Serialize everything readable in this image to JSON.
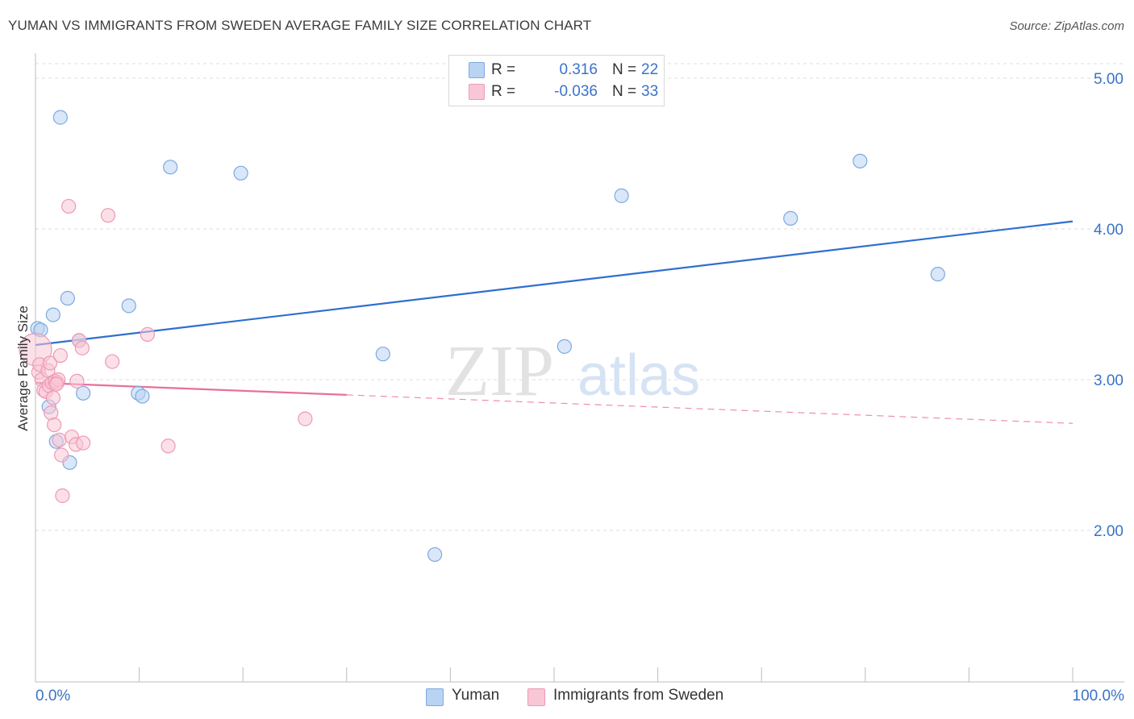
{
  "header": {
    "title": "YUMAN VS IMMIGRANTS FROM SWEDEN AVERAGE FAMILY SIZE CORRELATION CHART",
    "source": "Source: ZipAtlas.com"
  },
  "watermark": {
    "zip": "ZIP",
    "atlas": "atlas"
  },
  "legend": {
    "r_label": "R =",
    "n_label": "N =",
    "rows": [
      {
        "r_value": "0.316",
        "n_value": "22"
      },
      {
        "r_value": "-0.036",
        "n_value": "33"
      }
    ]
  },
  "colors": {
    "yuman_fill": "#b9d3f3",
    "yuman_stroke": "#7ea9df",
    "yuman_line": "#2e6fcf",
    "sweden_fill": "#f9c6d6",
    "sweden_stroke": "#ec9ab5",
    "sweden_line": "#e8709a",
    "tick_text": "#3a73c8",
    "grid": "#dcdcdc"
  },
  "chart_data": {
    "type": "scatter",
    "title": "YUMAN VS IMMIGRANTS FROM SWEDEN AVERAGE FAMILY SIZE CORRELATION CHART",
    "xlabel": "",
    "ylabel": "Average Family Size",
    "xlim": [
      0,
      100
    ],
    "ylim": [
      1.0,
      5.15
    ],
    "x_tick_labels": [
      "0.0%",
      "100.0%"
    ],
    "x_minor_ticks": [
      0,
      10,
      20,
      30,
      40,
      50,
      60,
      70,
      80,
      90,
      100
    ],
    "y_ticks": [
      2.0,
      3.0,
      4.0,
      5.0
    ],
    "y_tick_labels": [
      "2.00",
      "3.00",
      "4.00",
      "5.00"
    ],
    "grid": true,
    "legend_position": "top-center",
    "series": [
      {
        "name": "Yuman",
        "r": 0.316,
        "n": 22,
        "trend": {
          "x0": 0,
          "y0": 3.23,
          "x1": 100,
          "y1": 4.05,
          "solid_until": 100
        },
        "points": [
          {
            "x": 0.2,
            "y": 3.34
          },
          {
            "x": 0.5,
            "y": 3.33
          },
          {
            "x": 1.3,
            "y": 2.82
          },
          {
            "x": 1.7,
            "y": 3.43
          },
          {
            "x": 2.0,
            "y": 2.59
          },
          {
            "x": 2.4,
            "y": 4.74
          },
          {
            "x": 3.1,
            "y": 3.54
          },
          {
            "x": 3.3,
            "y": 2.45
          },
          {
            "x": 4.2,
            "y": 3.26
          },
          {
            "x": 4.6,
            "y": 2.91
          },
          {
            "x": 9.0,
            "y": 3.49
          },
          {
            "x": 9.9,
            "y": 2.91
          },
          {
            "x": 10.3,
            "y": 2.89
          },
          {
            "x": 13.0,
            "y": 4.41
          },
          {
            "x": 19.8,
            "y": 4.37
          },
          {
            "x": 33.5,
            "y": 3.17
          },
          {
            "x": 38.5,
            "y": 1.84
          },
          {
            "x": 51.0,
            "y": 3.22
          },
          {
            "x": 56.5,
            "y": 4.22
          },
          {
            "x": 72.8,
            "y": 4.07
          },
          {
            "x": 79.5,
            "y": 4.45
          },
          {
            "x": 87.0,
            "y": 3.7
          }
        ]
      },
      {
        "name": "Immigrants from Sweden",
        "r": -0.036,
        "n": 33,
        "trend": {
          "x0": 0,
          "y0": 2.98,
          "x1": 100,
          "y1": 2.71,
          "solid_until": 30
        },
        "points": [
          {
            "x": 0.0,
            "y": 3.2
          },
          {
            "x": 0.3,
            "y": 3.05
          },
          {
            "x": 0.4,
            "y": 3.1
          },
          {
            "x": 0.6,
            "y": 3.0
          },
          {
            "x": 0.8,
            "y": 2.93
          },
          {
            "x": 1.0,
            "y": 2.92
          },
          {
            "x": 1.2,
            "y": 3.06
          },
          {
            "x": 1.3,
            "y": 2.96
          },
          {
            "x": 1.4,
            "y": 3.11
          },
          {
            "x": 1.5,
            "y": 2.78
          },
          {
            "x": 1.6,
            "y": 2.98
          },
          {
            "x": 1.7,
            "y": 2.88
          },
          {
            "x": 1.8,
            "y": 2.7
          },
          {
            "x": 1.9,
            "y": 2.99
          },
          {
            "x": 2.1,
            "y": 2.98
          },
          {
            "x": 2.2,
            "y": 3.0
          },
          {
            "x": 2.3,
            "y": 2.6
          },
          {
            "x": 2.4,
            "y": 3.16
          },
          {
            "x": 2.5,
            "y": 2.5
          },
          {
            "x": 2.6,
            "y": 2.23
          },
          {
            "x": 3.2,
            "y": 4.15
          },
          {
            "x": 3.5,
            "y": 2.62
          },
          {
            "x": 3.9,
            "y": 2.57
          },
          {
            "x": 4.0,
            "y": 2.99
          },
          {
            "x": 4.2,
            "y": 3.26
          },
          {
            "x": 4.5,
            "y": 3.21
          },
          {
            "x": 4.6,
            "y": 2.58
          },
          {
            "x": 7.0,
            "y": 4.09
          },
          {
            "x": 7.4,
            "y": 3.12
          },
          {
            "x": 10.8,
            "y": 3.3
          },
          {
            "x": 12.8,
            "y": 2.56
          },
          {
            "x": 26.0,
            "y": 2.74
          },
          {
            "x": 2.0,
            "y": 2.97
          }
        ]
      }
    ]
  }
}
